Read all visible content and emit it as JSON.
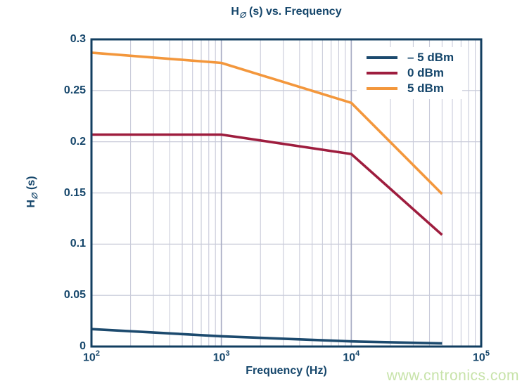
{
  "page": {
    "background": "#ffffff"
  },
  "watermark": {
    "text": "www.cntronics.com",
    "color": "#c7e3a9"
  },
  "chart_data": {
    "type": "line",
    "title": "H∅ (s) vs. Frequency",
    "title_parts": {
      "prefix": "H",
      "sub": "∅",
      "suffix": " (s) vs. Frequency"
    },
    "xlabel": "Frequency (Hz)",
    "ylabel": "H∅ (s)",
    "ylabel_parts": {
      "prefix": "H",
      "sub": "∅",
      "suffix": " (s)"
    },
    "x_scale": "log",
    "xlim": [
      100,
      100000
    ],
    "ylim": [
      0,
      0.3
    ],
    "x_ticks": [
      {
        "value": 100,
        "mantissa": "10",
        "exponent": "2"
      },
      {
        "value": 1000,
        "mantissa": "10",
        "exponent": "3"
      },
      {
        "value": 10000,
        "mantissa": "10",
        "exponent": "4"
      },
      {
        "value": 100000,
        "mantissa": "10",
        "exponent": "5"
      }
    ],
    "y_ticks": [
      {
        "value": 0,
        "label": "0"
      },
      {
        "value": 0.05,
        "label": "0.05"
      },
      {
        "value": 0.1,
        "label": "0.1"
      },
      {
        "value": 0.15,
        "label": "0.15"
      },
      {
        "value": 0.2,
        "label": "0.2"
      },
      {
        "value": 0.25,
        "label": "0.25"
      },
      {
        "value": 0.3,
        "label": "0.3"
      }
    ],
    "grid": {
      "minor_color": "#c9cbda",
      "major_color": "#a8acc4",
      "horizontal_color": "#c4c7d6"
    },
    "axis_color": "#123e60",
    "text_color": "#15466b",
    "legend_position": "top-right",
    "series": [
      {
        "name": "– 5 dBm",
        "color": "#1c4a6e",
        "x": [
          100,
          1000,
          10000,
          50000
        ],
        "y": [
          0.017,
          0.01,
          0.005,
          0.003
        ]
      },
      {
        "name": "0 dBm",
        "color": "#9e1d3e",
        "x": [
          100,
          1000,
          10000,
          50000
        ],
        "y": [
          0.207,
          0.207,
          0.188,
          0.109
        ]
      },
      {
        "name": "5 dBm",
        "color": "#f3973c",
        "x": [
          100,
          1000,
          10000,
          50000
        ],
        "y": [
          0.287,
          0.277,
          0.238,
          0.149
        ]
      }
    ]
  }
}
